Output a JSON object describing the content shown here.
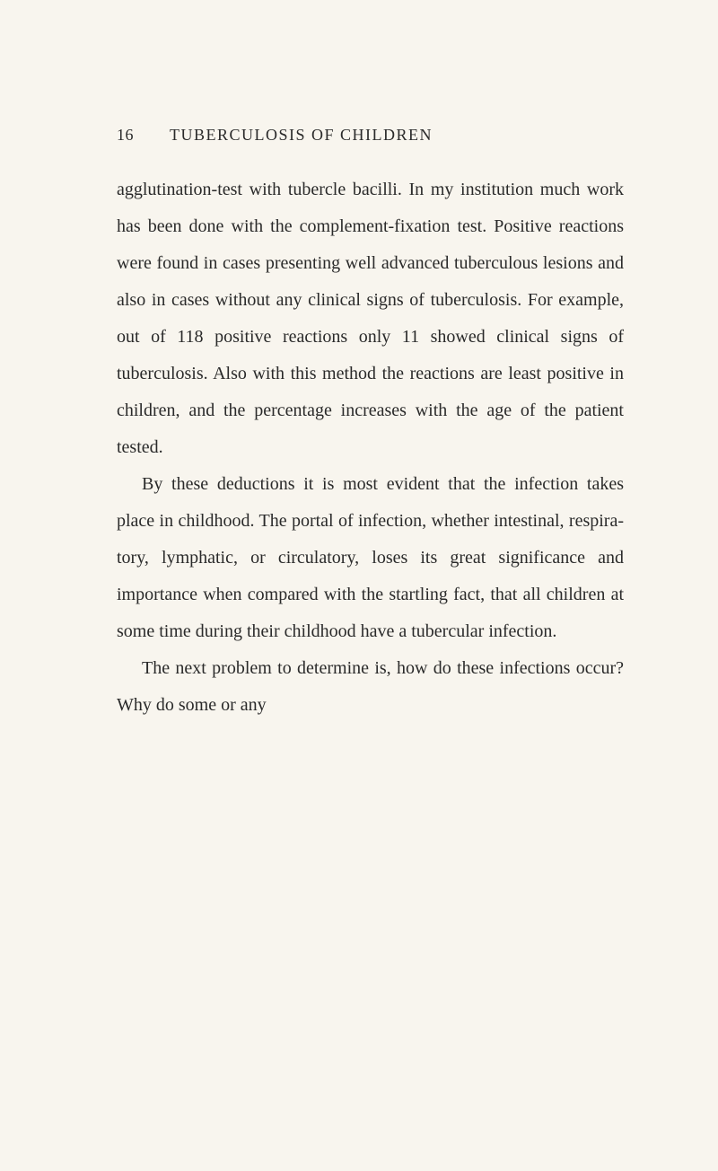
{
  "page": {
    "number": "16",
    "header": "TUBERCULOSIS OF CHILDREN"
  },
  "body": {
    "paragraphs": [
      {
        "text": "agglutination-test with tubercle bacilli. In my institution much work has been done with the complement-fixation test. Positive reactions were found in cases presenting well advanced tuberculous lesions and also in cases without any clinical signs of tuberculosis. For ex­ample, out of 118 positive reactions only 11 showed clinical signs of tuberculosis. Also with this method the reactions are least posi­tive in children, and the percentage increases with the age of the patient tested.",
        "indent": false
      },
      {
        "text": "By these deductions it is most evident that the infection takes place in childhood. The portal of infection, whether intestinal, respira­tory, lymphatic, or circulatory, loses its great significance and importance when compared with the startling fact, that all children at some time during their childhood have a tubercular infection.",
        "indent": true
      },
      {
        "text": "The next problem to determine is, how do these infections occur? Why do some or any",
        "indent": true
      }
    ]
  },
  "colors": {
    "background": "#f8f5ee",
    "text": "#2a2a2a"
  },
  "typography": {
    "body_fontsize": 20,
    "header_fontsize": 18,
    "line_height": 2.05,
    "font_family": "Georgia, Times New Roman, serif"
  }
}
